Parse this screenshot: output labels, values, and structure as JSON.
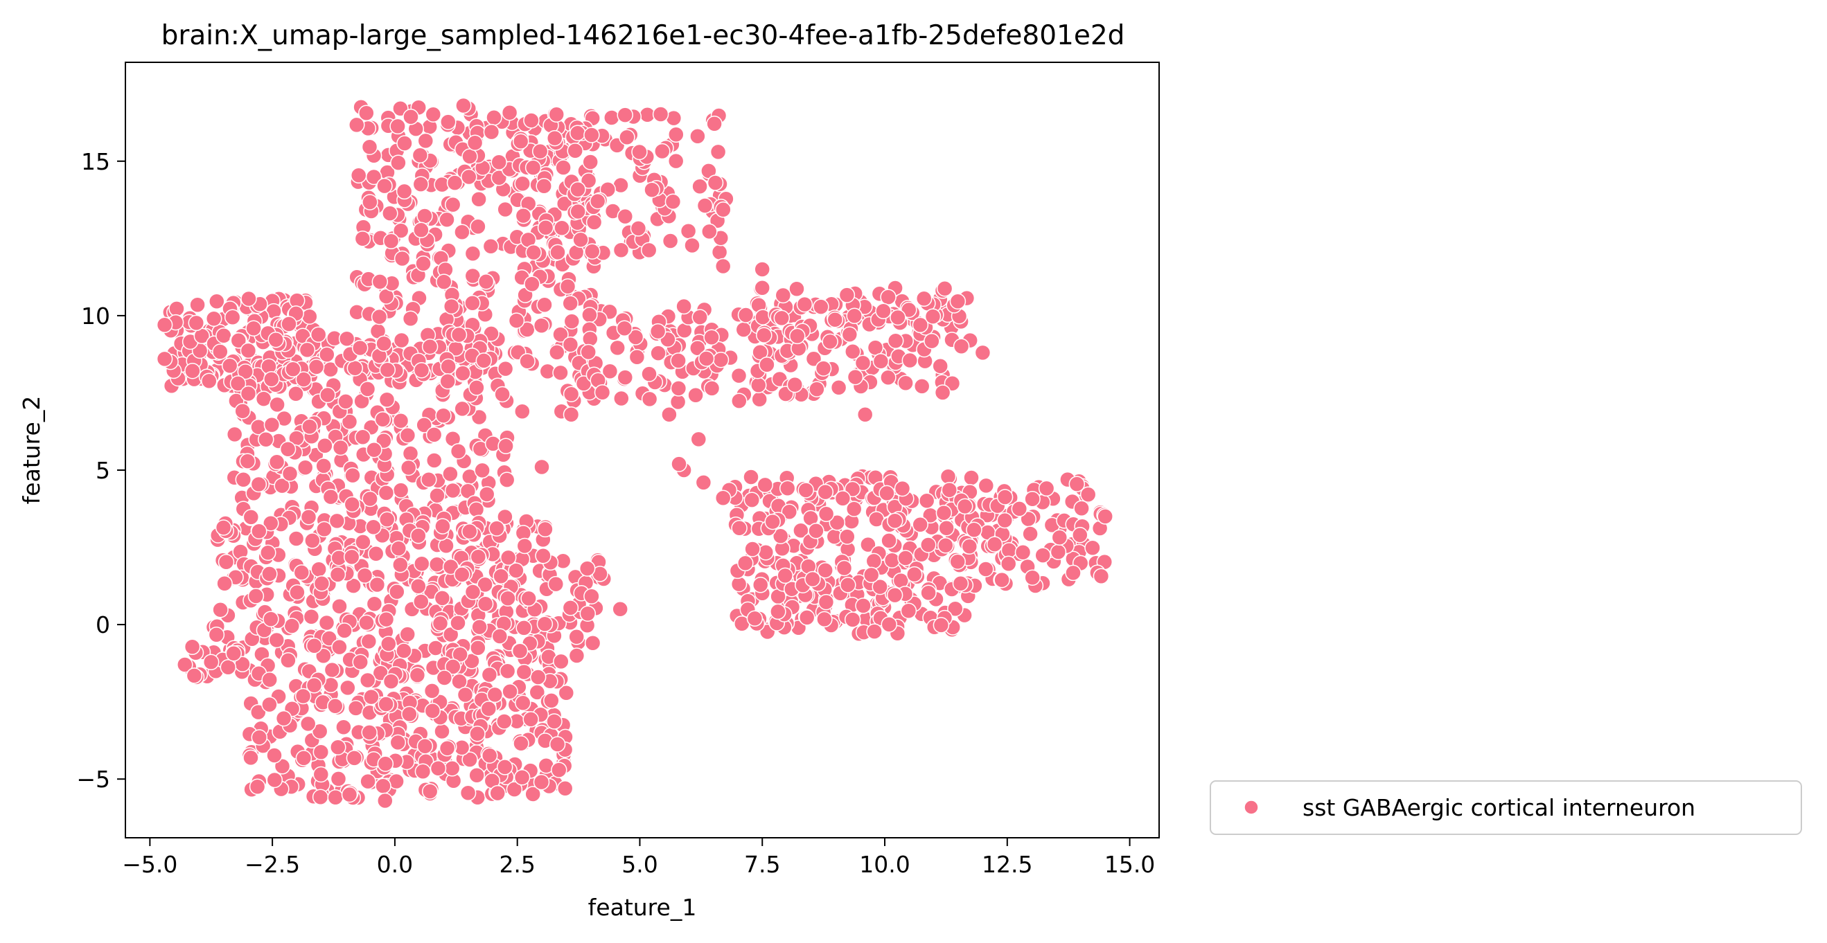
{
  "chart_data": {
    "type": "scatter",
    "title": "brain:X_umap-large_sampled-146216e1-ec30-4fee-a1fb-25defe801e2d",
    "xlabel": "feature_1",
    "ylabel": "feature_2",
    "xlim": [
      -5.5,
      15.6
    ],
    "ylim": [
      -6.9,
      18.2
    ],
    "xticks": [
      -5.0,
      -2.5,
      0.0,
      2.5,
      5.0,
      7.5,
      10.0,
      12.5,
      15.0
    ],
    "xtick_labels": [
      "−5.0",
      "−2.5",
      "0.0",
      "2.5",
      "5.0",
      "7.5",
      "10.0",
      "12.5",
      "15.0"
    ],
    "yticks": [
      -5,
      0,
      5,
      10,
      15
    ],
    "ytick_labels": [
      "−5",
      "0",
      "5",
      "10",
      "15"
    ],
    "grid": false,
    "legend_position": "outside-lower-right",
    "series": [
      {
        "name": "sst GABAergic cortical interneuron",
        "color": "#f77189",
        "marker": "circle",
        "cluster_regions": [
          {
            "x": [
              -0.8,
              4.1
            ],
            "y": [
              8.0,
              16.8
            ],
            "n": 360
          },
          {
            "x": [
              2.5,
              6.8
            ],
            "y": [
              12.0,
              16.6
            ],
            "n": 120
          },
          {
            "x": [
              -4.6,
              -1.5
            ],
            "y": [
              7.6,
              10.6
            ],
            "n": 150
          },
          {
            "x": [
              -3.3,
              2.3
            ],
            "y": [
              3.0,
              9.5
            ],
            "n": 320
          },
          {
            "x": [
              -3.7,
              3.2
            ],
            "y": [
              -1.5,
              3.5
            ],
            "n": 330
          },
          {
            "x": [
              1.0,
              4.4
            ],
            "y": [
              -1.6,
              2.4
            ],
            "n": 90
          },
          {
            "x": [
              -4.3,
              -3.0
            ],
            "y": [
              -1.7,
              -0.6
            ],
            "n": 20
          },
          {
            "x": [
              -3.0,
              3.5
            ],
            "y": [
              -5.6,
              -1.5
            ],
            "n": 300
          },
          {
            "x": [
              3.5,
              7.8
            ],
            "y": [
              7.2,
              10.4
            ],
            "n": 110
          },
          {
            "x": [
              7.4,
              11.8
            ],
            "y": [
              7.4,
              10.9
            ],
            "n": 170
          },
          {
            "x": [
              6.8,
              11.8
            ],
            "y": [
              -0.3,
              4.8
            ],
            "n": 300
          },
          {
            "x": [
              11.2,
              14.5
            ],
            "y": [
              1.2,
              4.7
            ],
            "n": 110
          }
        ],
        "points": [
          [
            -4.7,
            9.7
          ],
          [
            -4.7,
            8.6
          ],
          [
            4.6,
            0.5
          ],
          [
            6.6,
            15.3
          ],
          [
            14.5,
            3.5
          ],
          [
            12.0,
            8.8
          ],
          [
            9.6,
            6.8
          ],
          [
            7.5,
            11.5
          ],
          [
            7.5,
            10.9
          ],
          [
            6.7,
            11.6
          ],
          [
            5.9,
            10.3
          ],
          [
            5.2,
            7.3
          ],
          [
            5.6,
            6.8
          ],
          [
            6.2,
            6.0
          ],
          [
            5.9,
            5.0
          ],
          [
            6.3,
            4.6
          ],
          [
            5.8,
            5.2
          ],
          [
            3.0,
            5.1
          ],
          [
            2.6,
            6.9
          ],
          [
            3.4,
            6.9
          ],
          [
            3.6,
            6.8
          ],
          [
            4.7,
            8.0
          ],
          [
            6.7,
            4.1
          ],
          [
            -0.2,
            -5.7
          ],
          [
            1.4,
            16.8
          ]
        ]
      }
    ]
  }
}
